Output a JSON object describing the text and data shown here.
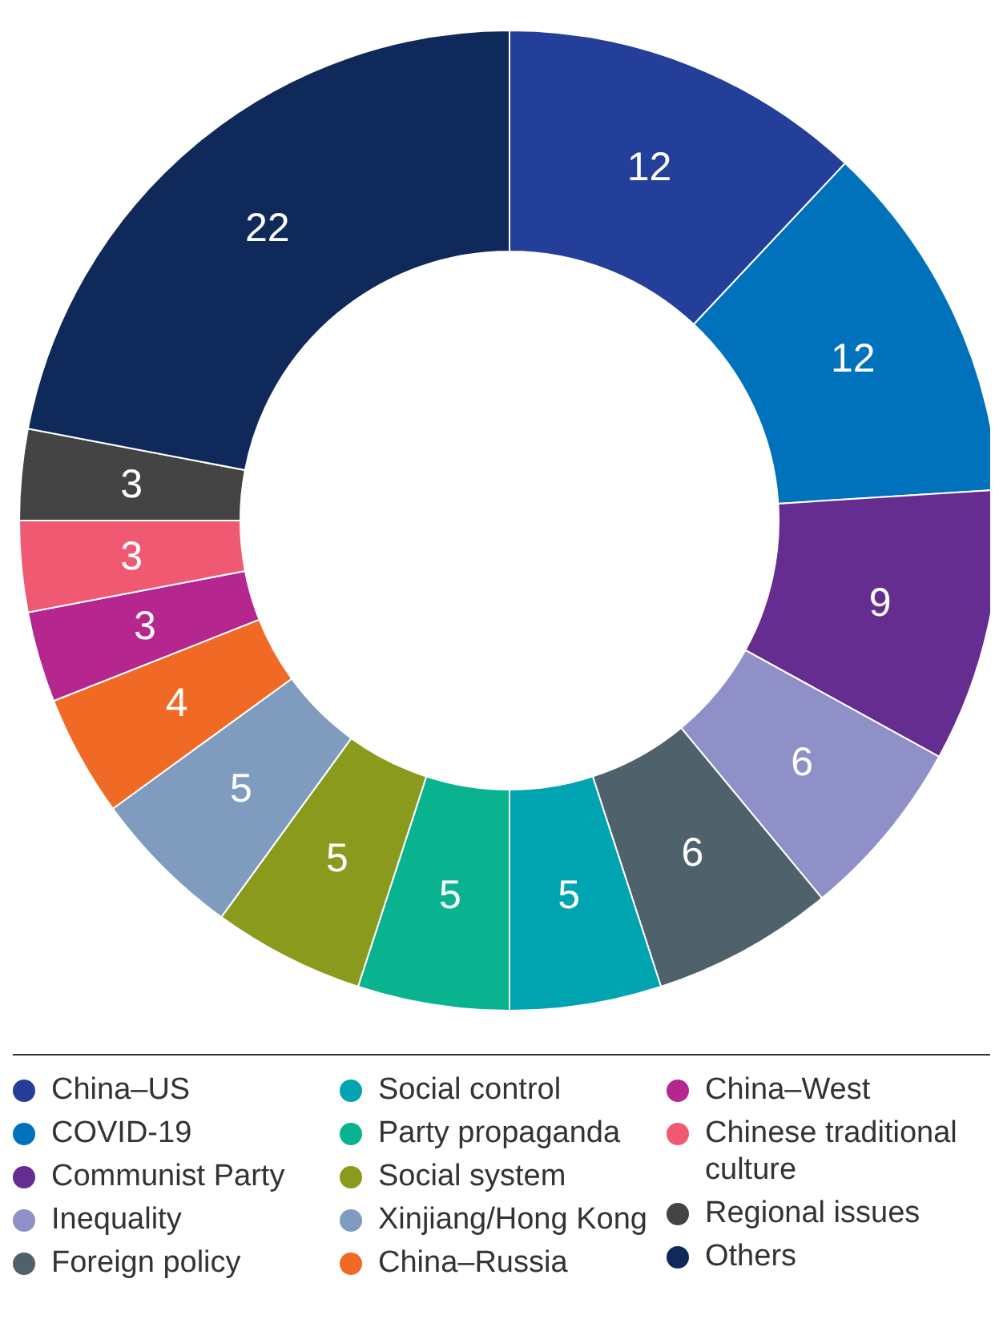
{
  "chart_data": {
    "type": "donut",
    "categories": [
      "China–US",
      "COVID-19",
      "Communist Party",
      "Inequality",
      "Foreign policy",
      "Social control",
      "Party propaganda",
      "Social system",
      "Xinjiang/Hong Kong",
      "China–Russia",
      "China–West",
      "Chinese traditional culture",
      "Regional issues",
      "Others"
    ],
    "values": [
      12,
      12,
      9,
      6,
      6,
      5,
      5,
      5,
      5,
      4,
      3,
      3,
      3,
      22
    ],
    "colors": [
      "#233f99",
      "#0072bc",
      "#662d91",
      "#9090c8",
      "#4f626b",
      "#00a3b0",
      "#0ab38f",
      "#8a9a1c",
      "#7f9bbd",
      "#f06a25",
      "#b5278f",
      "#ef5a72",
      "#444444",
      "#0f2a5a"
    ],
    "data_labels": true,
    "legend": "bottom"
  }
}
